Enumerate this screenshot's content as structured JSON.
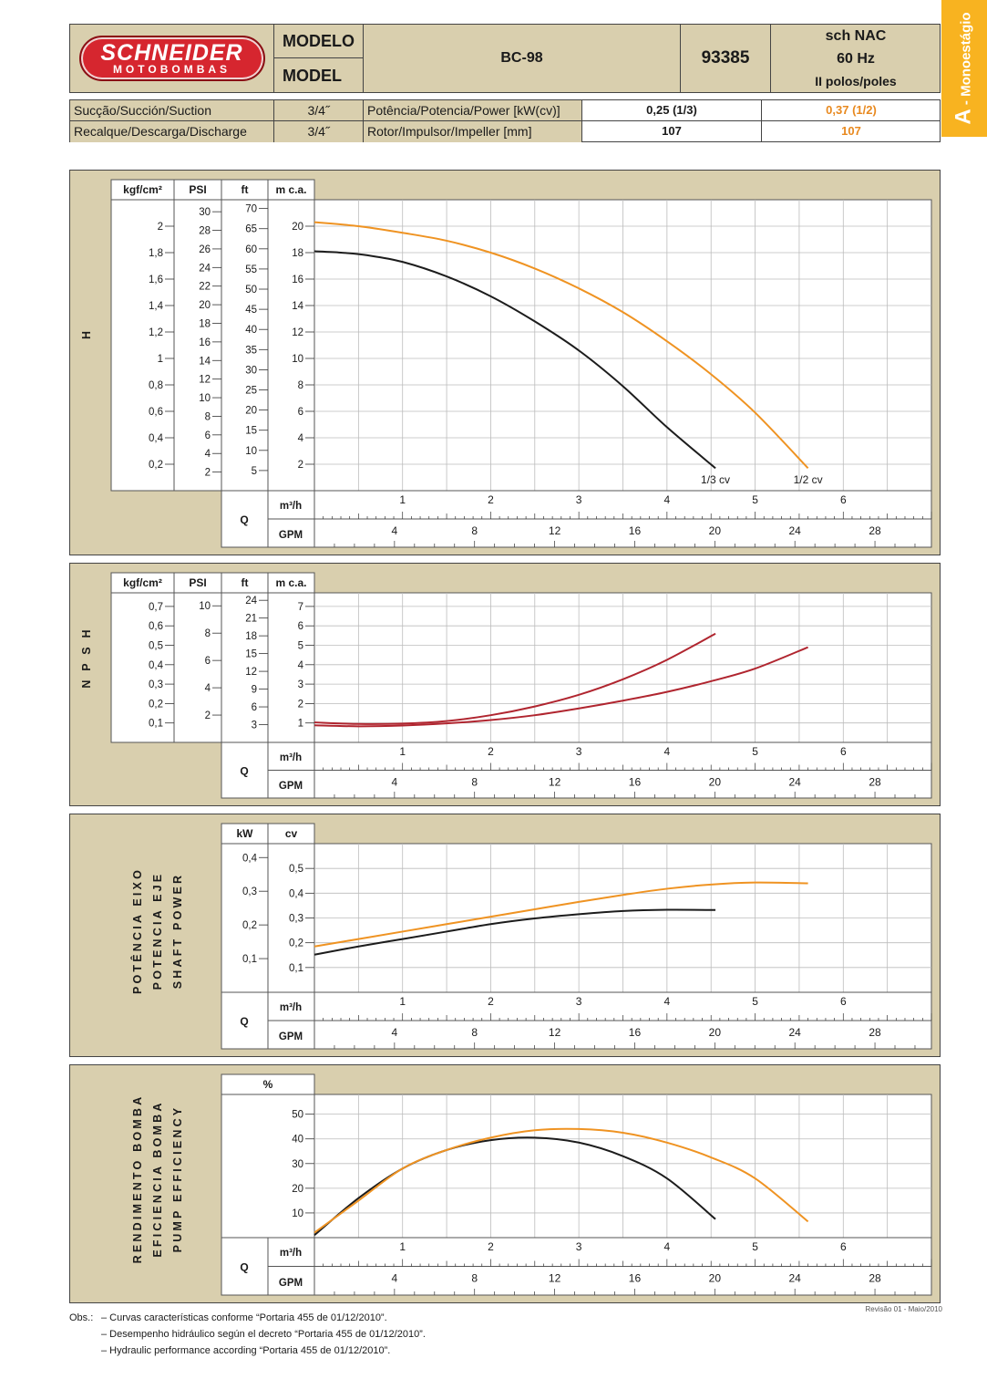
{
  "header": {
    "logo_line1": "SCHNEIDER",
    "logo_line2": "MOTOBOMBAS",
    "model_label_pt": "MODELO",
    "model_label_en": "MODEL",
    "model": "BC-98",
    "code": "93385",
    "spec_line1": "sch NAC",
    "spec_line2": "60 Hz",
    "spec_line3": "II polos/poles"
  },
  "side_tab": {
    "letter": "A",
    "text": " - Monoestágio"
  },
  "specs": {
    "suction_label": "Sucção/Succión/Suction",
    "suction_value": "3/4˝",
    "discharge_label": "Recalque/Descarga/Discharge",
    "discharge_value": "3/4˝",
    "power_label": "Potência/Potencia/Power [kW(cv)]",
    "power_a": "0,25 (1/3)",
    "power_b": "0,37 (1/2)",
    "rotor_label": "Rotor/Impulsor/Impeller [mm]",
    "rotor_a": "107",
    "rotor_b": "107"
  },
  "colors": {
    "dark": "#1c1c1c",
    "orange": "#ef9322",
    "red": "#b0252f",
    "panel_bg": "#d9cfae",
    "tab": "#f8b320"
  },
  "x_axis": {
    "q_label": "Q",
    "m3h_label": "m³/h",
    "gpm_label": "GPM",
    "m3h_ticks": [
      "1",
      "2",
      "3",
      "4",
      "5",
      "6"
    ],
    "gpm_ticks": [
      "4",
      "8",
      "12",
      "16",
      "20",
      "24",
      "28"
    ]
  },
  "chart_data": [
    {
      "id": "head",
      "type": "line",
      "side_label": "H",
      "x_unit": "m³/h",
      "xlim": [
        0,
        7
      ],
      "ylim": [
        0,
        22
      ],
      "y_unit": "m c.a.",
      "grid": true,
      "scales": [
        {
          "header": "kgf/cm²",
          "ticks": [
            "2",
            "1,8",
            "1,6",
            "1,4",
            "1,2",
            "1",
            "0,8",
            "0,6",
            "0,4",
            "0,2"
          ],
          "values": [
            2,
            1.8,
            1.6,
            1.4,
            1.2,
            1,
            0.8,
            0.6,
            0.4,
            0.2
          ],
          "factor": 10
        },
        {
          "header": "PSI",
          "ticks": [
            "30",
            "28",
            "26",
            "24",
            "22",
            "20",
            "18",
            "16",
            "14",
            "12",
            "10",
            "8",
            "6",
            "4",
            "2"
          ],
          "values": [
            30,
            28,
            26,
            24,
            22,
            20,
            18,
            16,
            14,
            12,
            10,
            8,
            6,
            4,
            2
          ],
          "factor": 0.7031
        },
        {
          "header": "ft",
          "ticks": [
            "70",
            "65",
            "60",
            "55",
            "50",
            "45",
            "40",
            "35",
            "30",
            "25",
            "20",
            "15",
            "10",
            "5"
          ],
          "values": [
            70,
            65,
            60,
            55,
            50,
            45,
            40,
            35,
            30,
            25,
            20,
            15,
            10,
            5
          ],
          "factor": 0.3048
        },
        {
          "header": "m c.a.",
          "ticks": [
            "20",
            "18",
            "16",
            "14",
            "12",
            "10",
            "8",
            "6",
            "4",
            "2"
          ],
          "values": [
            20,
            18,
            16,
            14,
            12,
            10,
            8,
            6,
            4,
            2
          ],
          "factor": 1
        }
      ],
      "series": [
        {
          "name": "1/3 cv",
          "color_key": "dark",
          "x": [
            0,
            0.3,
            0.6,
            1,
            1.5,
            2,
            2.5,
            3,
            3.5,
            4,
            4.55
          ],
          "y": [
            18.1,
            18.0,
            17.8,
            17.3,
            16.2,
            14.7,
            12.8,
            10.6,
            7.9,
            4.8,
            1.7
          ]
        },
        {
          "name": "1/2 cv",
          "color_key": "orange",
          "x": [
            0,
            0.5,
            1,
            1.5,
            2,
            2.5,
            3,
            3.5,
            4,
            4.5,
            5,
            5.6
          ],
          "y": [
            20.3,
            20.0,
            19.5,
            18.9,
            18.0,
            16.8,
            15.3,
            13.5,
            11.3,
            8.8,
            5.9,
            1.7
          ]
        }
      ]
    },
    {
      "id": "npsh",
      "type": "line",
      "side_label": "N P S H",
      "x_unit": "m³/h",
      "xlim": [
        0,
        7
      ],
      "ylim": [
        0,
        7.7
      ],
      "y_unit": "m c.a.",
      "grid": true,
      "scales": [
        {
          "header": "kgf/cm²",
          "ticks": [
            "0,7",
            "0,6",
            "0,5",
            "0,4",
            "0,3",
            "0,2",
            "0,1"
          ],
          "values": [
            0.7,
            0.6,
            0.5,
            0.4,
            0.3,
            0.2,
            0.1
          ],
          "factor": 10
        },
        {
          "header": "PSI",
          "ticks": [
            "10",
            "8",
            "6",
            "4",
            "2"
          ],
          "values": [
            10,
            8,
            6,
            4,
            2
          ],
          "factor": 0.7031
        },
        {
          "header": "ft",
          "ticks": [
            "24",
            "21",
            "18",
            "15",
            "12",
            "9",
            "6",
            "3"
          ],
          "values": [
            24,
            21,
            18,
            15,
            12,
            9,
            6,
            3
          ],
          "factor": 0.3048
        },
        {
          "header": "m c.a.",
          "ticks": [
            "7",
            "6",
            "5",
            "4",
            "3",
            "2",
            "1"
          ],
          "values": [
            7,
            6,
            5,
            4,
            3,
            2,
            1
          ],
          "factor": 1
        }
      ],
      "series": [
        {
          "name": "1/3 cv",
          "color_key": "red",
          "x": [
            0,
            0.5,
            1,
            1.5,
            2,
            2.5,
            3,
            3.5,
            4,
            4.55
          ],
          "y": [
            1.03,
            0.95,
            0.97,
            1.1,
            1.4,
            1.85,
            2.45,
            3.25,
            4.25,
            5.6
          ]
        },
        {
          "name": "1/2 cv",
          "color_key": "red",
          "x": [
            0,
            0.5,
            1,
            1.5,
            2,
            2.5,
            3,
            3.5,
            4,
            4.5,
            5,
            5.6
          ],
          "y": [
            0.88,
            0.83,
            0.87,
            0.98,
            1.15,
            1.4,
            1.75,
            2.15,
            2.6,
            3.15,
            3.8,
            4.9
          ]
        }
      ]
    },
    {
      "id": "power",
      "type": "line",
      "side_label": "POTÊNCIA EIXO|POTENCIA EJE|SHAFT POWER",
      "x_unit": "m³/h",
      "xlim": [
        0,
        7
      ],
      "ylim": [
        0,
        0.6
      ],
      "y_unit": "cv",
      "grid": true,
      "scales": [
        {
          "header": "kW",
          "ticks": [
            "0,4",
            "0,3",
            "0,2",
            "0,1"
          ],
          "values": [
            0.4,
            0.3,
            0.2,
            0.1
          ],
          "factor": 1.3596
        },
        {
          "header": "cv",
          "ticks": [
            "0,5",
            "0,4",
            "0,3",
            "0,2",
            "0,1"
          ],
          "values": [
            0.5,
            0.4,
            0.3,
            0.2,
            0.1
          ],
          "factor": 1
        }
      ],
      "series": [
        {
          "name": "1/3 cv",
          "color_key": "dark",
          "x": [
            0,
            0.5,
            1,
            1.5,
            2,
            2.5,
            3,
            3.5,
            4,
            4.55
          ],
          "y": [
            0.152,
            0.185,
            0.215,
            0.245,
            0.275,
            0.298,
            0.315,
            0.328,
            0.333,
            0.332
          ]
        },
        {
          "name": "1/2 cv",
          "color_key": "orange",
          "x": [
            0,
            0.5,
            1,
            1.5,
            2,
            2.5,
            3,
            3.5,
            4,
            4.5,
            5,
            5.6
          ],
          "y": [
            0.185,
            0.215,
            0.245,
            0.275,
            0.305,
            0.335,
            0.365,
            0.393,
            0.418,
            0.435,
            0.443,
            0.44
          ]
        }
      ]
    },
    {
      "id": "efficiency",
      "type": "line",
      "side_label": "RENDIMENTO BOMBA|EFICIENCIA BOMBA|PUMP EFFICIENCY",
      "x_unit": "m³/h",
      "xlim": [
        0,
        7
      ],
      "ylim": [
        0,
        58
      ],
      "y_unit": "%",
      "grid": true,
      "scales": [
        {
          "header": "%",
          "ticks": [
            "50",
            "40",
            "30",
            "20",
            "10"
          ],
          "values": [
            50,
            40,
            30,
            20,
            10
          ],
          "factor": 1
        }
      ],
      "series": [
        {
          "name": "1/3 cv",
          "color_key": "dark",
          "x": [
            0,
            0.5,
            1,
            1.5,
            2,
            2.5,
            3,
            3.5,
            4,
            4.55
          ],
          "y": [
            1,
            16,
            28,
            35.5,
            39.5,
            40.5,
            38.5,
            33,
            24,
            7.5
          ]
        },
        {
          "name": "1/2 cv",
          "color_key": "orange",
          "x": [
            0,
            0.5,
            1,
            1.5,
            2,
            2.5,
            3,
            3.5,
            4,
            4.5,
            5,
            5.6
          ],
          "y": [
            2,
            15,
            28,
            35.5,
            40.5,
            43.5,
            44,
            42.5,
            38.5,
            32.5,
            24,
            6.5
          ]
        }
      ]
    }
  ],
  "footer": {
    "obs_label": "Obs.:",
    "line1": "–  Curvas características conforme “Portaria 455 de 01/12/2010”.",
    "line2": "–  Desempenho hidráulico según el decreto “Portaria 455 de 01/12/2010”.",
    "line3": "–  Hydraulic performance according “Portaria 455 de 01/12/2010”.",
    "revision": "Revisão 01 - Maio/2010"
  }
}
